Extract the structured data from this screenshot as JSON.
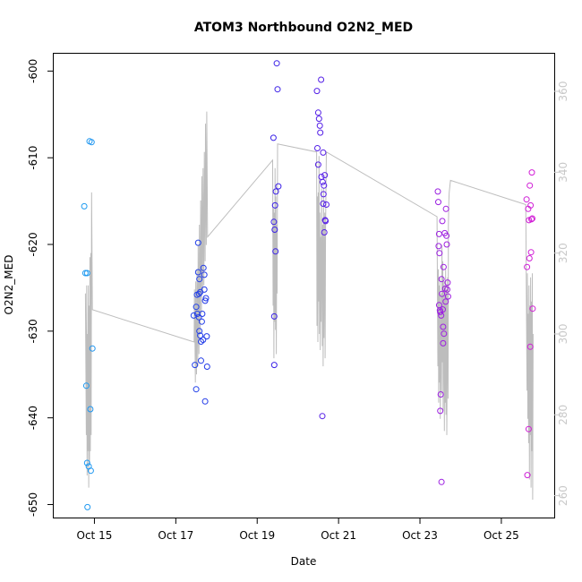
{
  "chart_data": {
    "type": "scatter",
    "title": "ATOM3 Northbound O2N2_MED",
    "xlabel": "Date",
    "ylabel": "O2N2_MED",
    "x_ticks": [
      "Oct 15",
      "Oct 17",
      "Oct 19",
      "Oct 21",
      "Oct 23",
      "Oct 25"
    ],
    "x_tick_days": [
      15,
      17,
      19,
      21,
      23,
      25
    ],
    "xlim": [
      14.0,
      26.3
    ],
    "ylim": [
      -651.5,
      -598.0
    ],
    "y_ticks": [
      -650,
      -640,
      -630,
      -620,
      -610,
      -600
    ],
    "y2_ticks": [
      260,
      280,
      300,
      320,
      340,
      360
    ],
    "y2lim": [
      254.6,
      369.3
    ],
    "grid": false,
    "colors": {
      "frame": "#000000",
      "right_axis": "#c8c8c8",
      "line": "#bdbdbd",
      "point_gradient": [
        "#1e9bf0",
        "#2222e6",
        "#7a1fe8",
        "#d21ed6"
      ]
    },
    "series": [
      {
        "type": "scatter",
        "points": [
          {
            "x": 14.75,
            "y": -615.6
          },
          {
            "x": 14.78,
            "y": -623.3
          },
          {
            "x": 14.8,
            "y": -636.3
          },
          {
            "x": 14.82,
            "y": -623.3
          },
          {
            "x": 14.82,
            "y": -645.2
          },
          {
            "x": 14.83,
            "y": -650.3
          },
          {
            "x": 14.86,
            "y": -645.6
          },
          {
            "x": 14.88,
            "y": -608.1
          },
          {
            "x": 14.9,
            "y": -639.0
          },
          {
            "x": 14.91,
            "y": -646.1
          },
          {
            "x": 14.93,
            "y": -608.2
          },
          {
            "x": 14.95,
            "y": -632.0
          },
          {
            "x": 17.44,
            "y": -628.2
          },
          {
            "x": 17.47,
            "y": -633.9
          },
          {
            "x": 17.5,
            "y": -627.2
          },
          {
            "x": 17.5,
            "y": -636.7
          },
          {
            "x": 17.52,
            "y": -625.8
          },
          {
            "x": 17.53,
            "y": -628.0
          },
          {
            "x": 17.55,
            "y": -619.8
          },
          {
            "x": 17.55,
            "y": -623.2
          },
          {
            "x": 17.57,
            "y": -625.7
          },
          {
            "x": 17.57,
            "y": -628.4
          },
          {
            "x": 17.58,
            "y": -630.0
          },
          {
            "x": 17.58,
            "y": -624.0
          },
          {
            "x": 17.6,
            "y": -625.5
          },
          {
            "x": 17.6,
            "y": -630.5
          },
          {
            "x": 17.62,
            "y": -633.4
          },
          {
            "x": 17.62,
            "y": -631.2
          },
          {
            "x": 17.64,
            "y": -628.9
          },
          {
            "x": 17.65,
            "y": -628.0
          },
          {
            "x": 17.67,
            "y": -631.0
          },
          {
            "x": 17.68,
            "y": -622.7
          },
          {
            "x": 17.7,
            "y": -625.2
          },
          {
            "x": 17.7,
            "y": -623.5
          },
          {
            "x": 17.72,
            "y": -626.5
          },
          {
            "x": 17.72,
            "y": -638.1
          },
          {
            "x": 17.74,
            "y": -626.2
          },
          {
            "x": 17.76,
            "y": -630.6
          },
          {
            "x": 17.77,
            "y": -634.1
          },
          {
            "x": 19.4,
            "y": -607.7
          },
          {
            "x": 19.41,
            "y": -617.4
          },
          {
            "x": 19.42,
            "y": -628.3
          },
          {
            "x": 19.42,
            "y": -633.9
          },
          {
            "x": 19.43,
            "y": -618.3
          },
          {
            "x": 19.44,
            "y": -615.5
          },
          {
            "x": 19.45,
            "y": -620.8
          },
          {
            "x": 19.46,
            "y": -613.9
          },
          {
            "x": 19.48,
            "y": -599.1
          },
          {
            "x": 19.5,
            "y": -602.1
          },
          {
            "x": 19.52,
            "y": -613.3
          },
          {
            "x": 20.47,
            "y": -602.3
          },
          {
            "x": 20.48,
            "y": -608.9
          },
          {
            "x": 20.5,
            "y": -610.8
          },
          {
            "x": 20.5,
            "y": -604.8
          },
          {
            "x": 20.52,
            "y": -605.5
          },
          {
            "x": 20.54,
            "y": -606.3
          },
          {
            "x": 20.55,
            "y": -607.1
          },
          {
            "x": 20.57,
            "y": -601.0
          },
          {
            "x": 20.58,
            "y": -612.2
          },
          {
            "x": 20.6,
            "y": -639.8
          },
          {
            "x": 20.61,
            "y": -612.8
          },
          {
            "x": 20.62,
            "y": -615.3
          },
          {
            "x": 20.62,
            "y": -609.4
          },
          {
            "x": 20.63,
            "y": -614.2
          },
          {
            "x": 20.64,
            "y": -613.2
          },
          {
            "x": 20.65,
            "y": -618.6
          },
          {
            "x": 20.66,
            "y": -612.0
          },
          {
            "x": 20.67,
            "y": -617.2
          },
          {
            "x": 20.68,
            "y": -617.3
          },
          {
            "x": 20.7,
            "y": -615.4
          },
          {
            "x": 23.44,
            "y": -613.9
          },
          {
            "x": 23.45,
            "y": -615.1
          },
          {
            "x": 23.46,
            "y": -620.2
          },
          {
            "x": 23.47,
            "y": -627.0
          },
          {
            "x": 23.47,
            "y": -618.8
          },
          {
            "x": 23.48,
            "y": -621.0
          },
          {
            "x": 23.49,
            "y": -627.6
          },
          {
            "x": 23.5,
            "y": -627.8
          },
          {
            "x": 23.5,
            "y": -639.2
          },
          {
            "x": 23.51,
            "y": -637.3
          },
          {
            "x": 23.52,
            "y": -628.2
          },
          {
            "x": 23.53,
            "y": -624.0
          },
          {
            "x": 23.53,
            "y": -647.4
          },
          {
            "x": 23.54,
            "y": -625.7
          },
          {
            "x": 23.55,
            "y": -617.3
          },
          {
            "x": 23.56,
            "y": -627.5
          },
          {
            "x": 23.57,
            "y": -631.4
          },
          {
            "x": 23.57,
            "y": -629.5
          },
          {
            "x": 23.58,
            "y": -622.6
          },
          {
            "x": 23.59,
            "y": -630.3
          },
          {
            "x": 23.61,
            "y": -618.7
          },
          {
            "x": 23.62,
            "y": -625.1
          },
          {
            "x": 23.63,
            "y": -626.6
          },
          {
            "x": 23.64,
            "y": -615.9
          },
          {
            "x": 23.65,
            "y": -619.0
          },
          {
            "x": 23.66,
            "y": -620.0
          },
          {
            "x": 23.67,
            "y": -625.2
          },
          {
            "x": 23.68,
            "y": -624.4
          },
          {
            "x": 23.69,
            "y": -626.0
          },
          {
            "x": 25.62,
            "y": -614.8
          },
          {
            "x": 25.63,
            "y": -622.6
          },
          {
            "x": 25.64,
            "y": -646.6
          },
          {
            "x": 25.66,
            "y": -615.9
          },
          {
            "x": 25.67,
            "y": -641.3
          },
          {
            "x": 25.68,
            "y": -617.2
          },
          {
            "x": 25.69,
            "y": -621.6
          },
          {
            "x": 25.7,
            "y": -613.2
          },
          {
            "x": 25.71,
            "y": -631.8
          },
          {
            "x": 25.72,
            "y": -615.5
          },
          {
            "x": 25.73,
            "y": -620.9
          },
          {
            "x": 25.74,
            "y": -617.1
          },
          {
            "x": 25.75,
            "y": -611.7
          },
          {
            "x": 25.76,
            "y": -617.0
          },
          {
            "x": 25.77,
            "y": -627.4
          }
        ]
      },
      {
        "type": "line",
        "axis": "right",
        "points": [
          {
            "x": 14.78,
            "y": 310
          },
          {
            "x": 14.8,
            "y": 275
          },
          {
            "x": 14.81,
            "y": 312
          },
          {
            "x": 14.82,
            "y": 265
          },
          {
            "x": 14.83,
            "y": 300
          },
          {
            "x": 14.84,
            "y": 271
          },
          {
            "x": 14.85,
            "y": 312
          },
          {
            "x": 14.86,
            "y": 262
          },
          {
            "x": 14.87,
            "y": 307
          },
          {
            "x": 14.88,
            "y": 268
          },
          {
            "x": 14.89,
            "y": 319
          },
          {
            "x": 14.9,
            "y": 271
          },
          {
            "x": 14.91,
            "y": 320
          },
          {
            "x": 14.92,
            "y": 275
          },
          {
            "x": 14.93,
            "y": 335
          },
          {
            "x": 14.95,
            "y": 306
          },
          {
            "x": 17.45,
            "y": 298
          },
          {
            "x": 17.46,
            "y": 311
          },
          {
            "x": 17.48,
            "y": 288
          },
          {
            "x": 17.49,
            "y": 313
          },
          {
            "x": 17.51,
            "y": 290
          },
          {
            "x": 17.52,
            "y": 316
          },
          {
            "x": 17.54,
            "y": 292
          },
          {
            "x": 17.55,
            "y": 322
          },
          {
            "x": 17.57,
            "y": 295
          },
          {
            "x": 17.58,
            "y": 327
          },
          {
            "x": 17.6,
            "y": 300
          },
          {
            "x": 17.61,
            "y": 333
          },
          {
            "x": 17.63,
            "y": 305
          },
          {
            "x": 17.64,
            "y": 339
          },
          {
            "x": 17.66,
            "y": 310
          },
          {
            "x": 17.67,
            "y": 341
          },
          {
            "x": 17.69,
            "y": 312
          },
          {
            "x": 17.7,
            "y": 345
          },
          {
            "x": 17.72,
            "y": 318
          },
          {
            "x": 17.73,
            "y": 352
          },
          {
            "x": 17.75,
            "y": 322
          },
          {
            "x": 17.76,
            "y": 355
          },
          {
            "x": 17.78,
            "y": 324
          },
          {
            "x": 19.38,
            "y": 343
          },
          {
            "x": 19.39,
            "y": 307
          },
          {
            "x": 19.4,
            "y": 331
          },
          {
            "x": 19.41,
            "y": 294
          },
          {
            "x": 19.42,
            "y": 330
          },
          {
            "x": 19.43,
            "y": 303
          },
          {
            "x": 19.44,
            "y": 341
          },
          {
            "x": 19.45,
            "y": 301
          },
          {
            "x": 19.46,
            "y": 334
          },
          {
            "x": 19.47,
            "y": 295
          },
          {
            "x": 19.48,
            "y": 327
          },
          {
            "x": 19.49,
            "y": 310
          },
          {
            "x": 19.5,
            "y": 347
          },
          {
            "x": 20.46,
            "y": 345
          },
          {
            "x": 20.47,
            "y": 302
          },
          {
            "x": 20.48,
            "y": 334
          },
          {
            "x": 20.49,
            "y": 298
          },
          {
            "x": 20.5,
            "y": 335
          },
          {
            "x": 20.51,
            "y": 308
          },
          {
            "x": 20.52,
            "y": 344
          },
          {
            "x": 20.53,
            "y": 300
          },
          {
            "x": 20.54,
            "y": 330
          },
          {
            "x": 20.55,
            "y": 296
          },
          {
            "x": 20.56,
            "y": 324
          },
          {
            "x": 20.57,
            "y": 303
          },
          {
            "x": 20.58,
            "y": 336
          },
          {
            "x": 20.6,
            "y": 297
          },
          {
            "x": 20.61,
            "y": 327
          },
          {
            "x": 20.62,
            "y": 292
          },
          {
            "x": 20.63,
            "y": 336
          },
          {
            "x": 20.64,
            "y": 299
          },
          {
            "x": 20.66,
            "y": 330
          },
          {
            "x": 20.67,
            "y": 294
          },
          {
            "x": 20.68,
            "y": 326
          },
          {
            "x": 20.7,
            "y": 345
          },
          {
            "x": 23.42,
            "y": 329
          },
          {
            "x": 23.44,
            "y": 292
          },
          {
            "x": 23.45,
            "y": 316
          },
          {
            "x": 23.46,
            "y": 283
          },
          {
            "x": 23.47,
            "y": 312
          },
          {
            "x": 23.48,
            "y": 288
          },
          {
            "x": 23.49,
            "y": 314
          },
          {
            "x": 23.5,
            "y": 279
          },
          {
            "x": 23.52,
            "y": 310
          },
          {
            "x": 23.53,
            "y": 285
          },
          {
            "x": 23.54,
            "y": 322
          },
          {
            "x": 23.55,
            "y": 293
          },
          {
            "x": 23.56,
            "y": 318
          },
          {
            "x": 23.57,
            "y": 281
          },
          {
            "x": 23.59,
            "y": 313
          },
          {
            "x": 23.6,
            "y": 276
          },
          {
            "x": 23.61,
            "y": 312
          },
          {
            "x": 23.62,
            "y": 283
          },
          {
            "x": 23.63,
            "y": 316
          },
          {
            "x": 23.64,
            "y": 280
          },
          {
            "x": 23.65,
            "y": 311
          },
          {
            "x": 23.66,
            "y": 275
          },
          {
            "x": 23.68,
            "y": 314
          },
          {
            "x": 23.69,
            "y": 284
          },
          {
            "x": 23.7,
            "y": 327
          },
          {
            "x": 23.71,
            "y": 333
          },
          {
            "x": 23.72,
            "y": 335
          },
          {
            "x": 23.75,
            "y": 338
          },
          {
            "x": 25.6,
            "y": 332
          },
          {
            "x": 25.62,
            "y": 302
          },
          {
            "x": 25.63,
            "y": 286
          },
          {
            "x": 25.64,
            "y": 315
          },
          {
            "x": 25.65,
            "y": 279
          },
          {
            "x": 25.66,
            "y": 305
          },
          {
            "x": 25.67,
            "y": 273
          },
          {
            "x": 25.68,
            "y": 312
          },
          {
            "x": 25.69,
            "y": 264
          },
          {
            "x": 25.7,
            "y": 307
          },
          {
            "x": 25.71,
            "y": 275
          },
          {
            "x": 25.72,
            "y": 314
          },
          {
            "x": 25.73,
            "y": 262
          },
          {
            "x": 25.74,
            "y": 308
          },
          {
            "x": 25.75,
            "y": 271
          },
          {
            "x": 25.76,
            "y": 315
          },
          {
            "x": 25.77,
            "y": 259
          },
          {
            "x": 25.78,
            "y": 300
          }
        ]
      }
    ]
  }
}
